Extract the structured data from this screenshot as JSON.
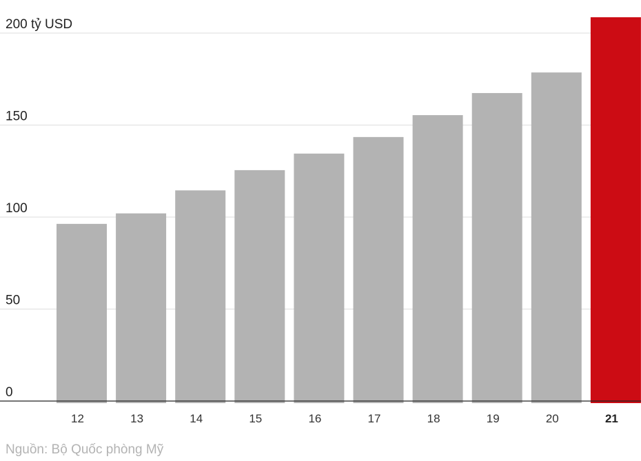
{
  "chart_data": {
    "type": "bar",
    "categories": [
      "12",
      "13",
      "14",
      "15",
      "16",
      "17",
      "18",
      "19",
      "20",
      "21"
    ],
    "values": [
      96.3,
      102,
      114.5,
      125.5,
      134.5,
      143.5,
      155.4,
      167.4,
      178.6,
      208.6
    ],
    "highlight_index": 9,
    "ylim": [
      0,
      210
    ],
    "yticks": [
      0,
      50,
      100,
      150,
      200
    ],
    "ytick_labels": [
      "0",
      "50",
      "100",
      "150",
      "200 tỷ USD"
    ],
    "grid": true,
    "source": "Nguồn: Bộ Quốc phòng Mỹ",
    "colors": {
      "bar": "#b3b3b3",
      "highlight": "#cc0c14",
      "grid": "#dddddd",
      "axis": "#222222"
    }
  }
}
